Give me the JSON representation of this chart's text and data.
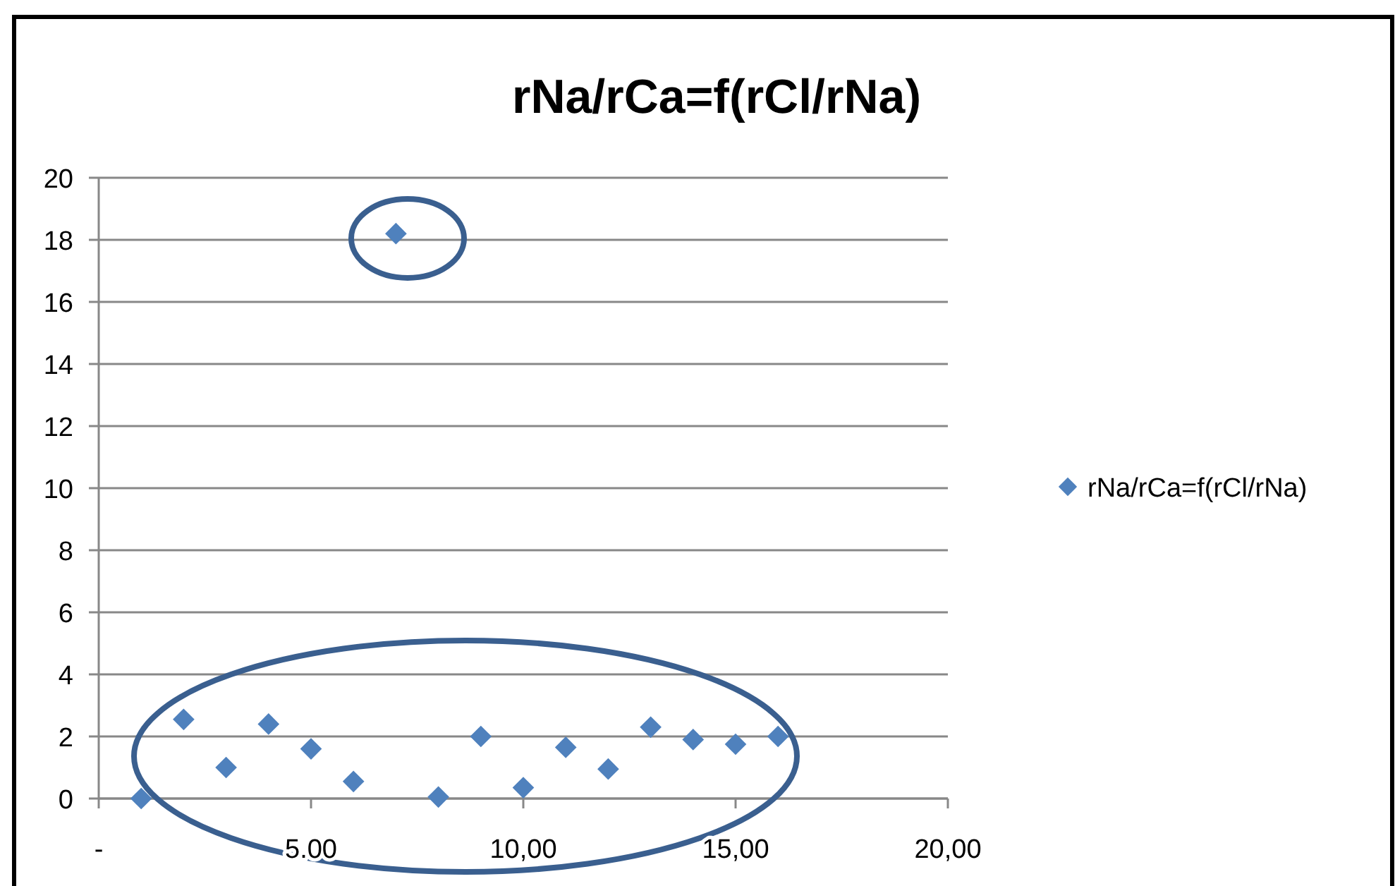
{
  "chart_data": {
    "type": "scatter",
    "title": "rNa/rCa=f(rCl/rNa)",
    "x": [
      1,
      2,
      3,
      4,
      5,
      6,
      7,
      8,
      9,
      10,
      11,
      12,
      13,
      14,
      15,
      16
    ],
    "series": [
      {
        "name": "rNa/rCa=f(rCl/rNa)",
        "color": "#4f81bd",
        "values": [
          0,
          2.55,
          1.0,
          2.4,
          1.6,
          0.55,
          18.2,
          0.05,
          2.0,
          0.35,
          1.65,
          0.95,
          2.3,
          1.9,
          1.75,
          2.0
        ]
      }
    ],
    "xlim": [
      0,
      20
    ],
    "xticks": [
      {
        "value": 0,
        "label": "-"
      },
      {
        "value": 5,
        "label": "5.00"
      },
      {
        "value": 10,
        "label": "10,00"
      },
      {
        "value": 15,
        "label": "15,00"
      },
      {
        "value": 20,
        "label": "20,00"
      }
    ],
    "ylim": [
      0,
      20
    ],
    "yticks": [
      0,
      2,
      4,
      6,
      8,
      10,
      12,
      14,
      16,
      18,
      20
    ],
    "grid": "y",
    "legend": "right",
    "marker": "diamond"
  }
}
